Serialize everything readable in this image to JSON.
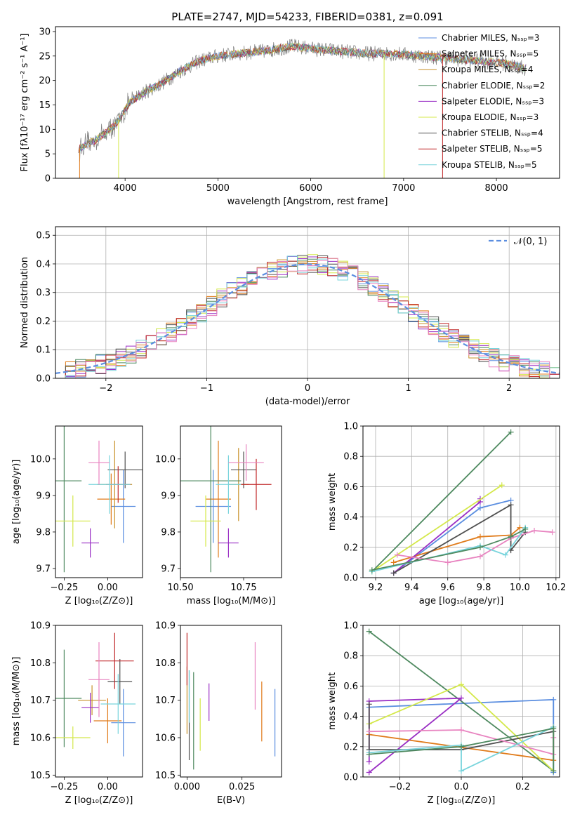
{
  "figure_title": "PLATE=2747, MJD=54233, FIBERID=0381, z=0.091",
  "colors": {
    "chabrier_miles": "#5b8ee0",
    "salpeter_miles": "#e07b1a",
    "kroupa_miles": "#c8912a",
    "chabrier_elodie": "#4f8a60",
    "salpeter_elodie": "#9a2fc4",
    "kroupa_elodie": "#d4e84a",
    "chabrier_stelib": "#505050",
    "salpeter_stelib": "#c0282a",
    "kroupa_stelib": "#78d4dc",
    "pink": "#e884c0",
    "data": "#808080",
    "normal_curve": "#5b8ee0"
  },
  "chart_data": [
    {
      "id": "spectrum",
      "type": "line",
      "xlabel": "wavelength [Angstrom, rest frame]",
      "ylabel": "Flux [fλ10⁻¹⁷ erg cm⁻² s⁻¹ A⁻¹]",
      "xlim": [
        3250,
        8680
      ],
      "ylim": [
        0,
        31
      ],
      "xticks": [
        "4000",
        "5000",
        "6000",
        "7000",
        "8000"
      ],
      "yticks": [
        "0",
        "5",
        "10",
        "15",
        "20",
        "25",
        "30"
      ],
      "continuum": {
        "x": [
          3500,
          3700,
          3900,
          4050,
          4200,
          4400,
          4600,
          4800,
          5000,
          5200,
          5500,
          5800,
          6000,
          6300,
          6600,
          6900,
          7200,
          7500,
          7800,
          8100,
          8300
        ],
        "y": [
          6,
          8,
          11,
          15.5,
          17.5,
          19.5,
          22,
          24,
          25,
          25.5,
          26,
          27,
          26.5,
          26,
          25.5,
          25.5,
          25,
          24.5,
          24,
          23.5,
          22.5
        ]
      },
      "drops_to_zero": [
        3510,
        3930,
        6790,
        7420
      ],
      "legend": [
        "Chabrier MILES, Nₛₛₚ=3",
        "Salpeter MILES, Nₛₛₚ=5",
        "Kroupa MILES, Nₛₛₚ=4",
        "Chabrier ELODIE, Nₛₛₚ=2",
        "Salpeter ELODIE, Nₛₛₚ=3",
        "Kroupa ELODIE, Nₛₛₚ=3",
        "Chabrier STELIB, Nₛₛₚ=4",
        "Salpeter STELIB, Nₛₛₚ=5",
        "Kroupa STELIB, Nₛₛₚ=5"
      ],
      "legend_placement": "right"
    },
    {
      "id": "residuals",
      "type": "histogram",
      "xlabel": "(data-model)/error",
      "ylabel": "Normed distribution",
      "xlim": [
        -2.5,
        2.5
      ],
      "ylim": [
        0,
        0.53
      ],
      "xticks": [
        "−2",
        "−1",
        "0",
        "1",
        "2"
      ],
      "yticks": [
        "0.0",
        "0.1",
        "0.2",
        "0.3",
        "0.4",
        "0.5"
      ],
      "grid": true,
      "bin_width": 0.1,
      "reference_curve": "N(0,1)",
      "legend": [
        "𝒩(0, 1)"
      ],
      "legend_placement": "top-right"
    },
    {
      "id": "age_vs_Z",
      "type": "errorbar",
      "xlabel": "Z [log₁₀(Z/Z⊙)]",
      "ylabel": "age  [log₁₀(age/yr)]",
      "xlim": [
        -0.3,
        0.2
      ],
      "ylim": [
        9.675,
        10.09
      ],
      "xticks": [
        "−0.25",
        "0.00"
      ],
      "yticks": [
        "9.7",
        "9.8",
        "9.9",
        "10.0"
      ],
      "points": [
        {
          "x": 0.09,
          "y": 9.87,
          "ex": 0.07,
          "ey": 0.1,
          "c": "chabrier_miles"
        },
        {
          "x": 0.02,
          "y": 9.89,
          "ex": 0.08,
          "ey": 0.07,
          "c": "salpeter_miles"
        },
        {
          "x": 0.04,
          "y": 9.93,
          "ex": 0.1,
          "ey": 0.12,
          "c": "kroupa_miles"
        },
        {
          "x": -0.25,
          "y": 9.94,
          "ex": 0.1,
          "ey": 0.25,
          "c": "chabrier_elodie"
        },
        {
          "x": -0.1,
          "y": 9.77,
          "ex": 0.05,
          "ey": 0.04,
          "c": "salpeter_elodie"
        },
        {
          "x": -0.2,
          "y": 9.83,
          "ex": 0.1,
          "ey": 0.07,
          "c": "kroupa_elodie"
        },
        {
          "x": 0.1,
          "y": 9.97,
          "ex": 0.1,
          "ey": 0.05,
          "c": "chabrier_stelib"
        },
        {
          "x": 0.06,
          "y": 9.93,
          "ex": 0.07,
          "ey": 0.05,
          "c": "salpeter_stelib"
        },
        {
          "x": 0.01,
          "y": 9.93,
          "ex": 0.12,
          "ey": 0.08,
          "c": "kroupa_stelib"
        },
        {
          "x": -0.05,
          "y": 9.99,
          "ex": 0.06,
          "ey": 0.06,
          "c": "pink"
        }
      ]
    },
    {
      "id": "age_vs_mass",
      "type": "errorbar",
      "xlabel": "mass [log₁₀(M/M⊙)]",
      "ylabel": "",
      "xlim": [
        10.5,
        10.9
      ],
      "ylim": [
        9.675,
        10.09
      ],
      "xticks": [
        "10.50",
        "10.75"
      ],
      "yticks": [
        "9.7",
        "9.8",
        "9.9",
        "10.0"
      ],
      "points": [
        {
          "x": 10.63,
          "y": 9.87,
          "ex": 0.07,
          "ey": 0.1,
          "c": "chabrier_miles"
        },
        {
          "x": 10.65,
          "y": 9.89,
          "ex": 0.05,
          "ey": 0.16,
          "c": "salpeter_miles"
        },
        {
          "x": 10.73,
          "y": 9.93,
          "ex": 0.04,
          "ey": 0.1,
          "c": "kroupa_miles"
        },
        {
          "x": 10.62,
          "y": 9.94,
          "ex": 0.12,
          "ey": 0.25,
          "c": "chabrier_elodie"
        },
        {
          "x": 10.69,
          "y": 9.77,
          "ex": 0.04,
          "ey": 0.04,
          "c": "salpeter_elodie"
        },
        {
          "x": 10.6,
          "y": 9.83,
          "ex": 0.06,
          "ey": 0.07,
          "c": "kroupa_elodie"
        },
        {
          "x": 10.75,
          "y": 9.97,
          "ex": 0.05,
          "ey": 0.05,
          "c": "chabrier_stelib"
        },
        {
          "x": 10.8,
          "y": 9.93,
          "ex": 0.06,
          "ey": 0.07,
          "c": "salpeter_stelib"
        },
        {
          "x": 10.69,
          "y": 9.93,
          "ex": 0.05,
          "ey": 0.08,
          "c": "kroupa_stelib"
        },
        {
          "x": 10.76,
          "y": 9.99,
          "ex": 0.07,
          "ey": 0.05,
          "c": "pink"
        }
      ]
    },
    {
      "id": "weight_vs_age",
      "type": "line",
      "xlabel": "age  [log₁₀(age/yr)]",
      "ylabel": "mass weight",
      "xlim": [
        9.13,
        10.22
      ],
      "ylim": [
        0,
        1
      ],
      "xticks": [
        "9.2",
        "9.4",
        "9.6",
        "9.8",
        "10.0",
        "10.2"
      ],
      "yticks": [
        "0.0",
        "0.2",
        "0.4",
        "0.6",
        "0.8",
        "1.0"
      ],
      "grid": true,
      "series": [
        {
          "c": "chabrier_miles",
          "x": [
            9.3,
            9.78,
            9.95
          ],
          "y": [
            0.03,
            0.46,
            0.51
          ]
        },
        {
          "c": "salpeter_miles",
          "x": [
            9.3,
            9.78,
            9.95,
            10.0
          ],
          "y": [
            0.1,
            0.27,
            0.28,
            0.33
          ]
        },
        {
          "c": "chabrier_elodie",
          "x": [
            9.18,
            9.95
          ],
          "y": [
            0.04,
            0.96
          ]
        },
        {
          "c": "salpeter_elodie",
          "x": [
            9.3,
            9.78,
            9.78
          ],
          "y": [
            0.03,
            0.5,
            0.52
          ]
        },
        {
          "c": "kroupa_elodie",
          "x": [
            9.18,
            9.9
          ],
          "y": [
            0.04,
            0.61
          ]
        },
        {
          "c": "chabrier_stelib",
          "x": [
            9.3,
            9.95,
            9.95,
            10.03
          ],
          "y": [
            0.03,
            0.48,
            0.18,
            0.3
          ]
        },
        {
          "c": "pink",
          "x": [
            9.32,
            9.6,
            9.78,
            9.95,
            10.08,
            10.18
          ],
          "y": [
            0.15,
            0.1,
            0.14,
            0.26,
            0.31,
            0.3
          ]
        },
        {
          "c": "kroupa_stelib",
          "x": [
            9.18,
            9.78,
            9.92,
            10.03
          ],
          "y": [
            0.04,
            0.21,
            0.15,
            0.33
          ]
        },
        {
          "c": "chabrier_elodie",
          "x": [
            9.18,
            9.78,
            9.95,
            10.03
          ],
          "y": [
            0.05,
            0.2,
            0.27,
            0.32
          ]
        }
      ]
    },
    {
      "id": "mass_vs_Z",
      "type": "errorbar",
      "xlabel": "Z [log₁₀(Z/Z⊙)]",
      "ylabel": "mass [log₁₀(M/M⊙)]",
      "xlim": [
        -0.3,
        0.2
      ],
      "ylim": [
        10.495,
        10.9
      ],
      "xticks": [
        "−0.25",
        "0.00"
      ],
      "yticks": [
        "10.5",
        "10.6",
        "10.7",
        "10.8",
        "10.9"
      ],
      "points": [
        {
          "x": 0.09,
          "y": 10.64,
          "ex": 0.07,
          "ey": 0.09,
          "c": "chabrier_miles"
        },
        {
          "x": 0.0,
          "y": 10.645,
          "ex": 0.08,
          "ey": 0.06,
          "c": "salpeter_miles"
        },
        {
          "x": -0.09,
          "y": 10.7,
          "ex": 0.08,
          "ey": 0.04,
          "c": "kroupa_miles"
        },
        {
          "x": -0.25,
          "y": 10.705,
          "ex": 0.1,
          "ey": 0.13,
          "c": "chabrier_elodie"
        },
        {
          "x": -0.1,
          "y": 10.68,
          "ex": 0.05,
          "ey": 0.04,
          "c": "salpeter_elodie"
        },
        {
          "x": -0.2,
          "y": 10.6,
          "ex": 0.1,
          "ey": 0.03,
          "c": "kroupa_elodie"
        },
        {
          "x": 0.07,
          "y": 10.75,
          "ex": 0.07,
          "ey": 0.06,
          "c": "chabrier_stelib"
        },
        {
          "x": 0.04,
          "y": 10.805,
          "ex": 0.11,
          "ey": 0.075,
          "c": "salpeter_stelib"
        },
        {
          "x": 0.06,
          "y": 10.69,
          "ex": 0.1,
          "ey": 0.08,
          "c": "kroupa_stelib"
        },
        {
          "x": -0.05,
          "y": 10.755,
          "ex": 0.06,
          "ey": 0.1,
          "c": "pink"
        }
      ]
    },
    {
      "id": "mass_vs_ebv",
      "type": "errorbar",
      "xlabel": "E(B-V)",
      "ylabel": "",
      "xlim": [
        -0.003,
        0.043
      ],
      "ylim": [
        10.495,
        10.9
      ],
      "xticks": [
        "0.000",
        "0.025"
      ],
      "yticks": [
        "10.5",
        "10.6",
        "10.7",
        "10.8",
        "10.9"
      ],
      "points": [
        {
          "x": 0.04,
          "y": 10.64,
          "ex": 0,
          "ey": 0.09,
          "c": "chabrier_miles"
        },
        {
          "x": 0.034,
          "y": 10.67,
          "ex": 0,
          "ey": 0.08,
          "c": "salpeter_miles"
        },
        {
          "x": 0.0,
          "y": 10.7,
          "ex": 0,
          "ey": 0.09,
          "c": "kroupa_miles"
        },
        {
          "x": 0.003,
          "y": 10.645,
          "ex": 0,
          "ey": 0.13,
          "c": "chabrier_elodie"
        },
        {
          "x": 0.01,
          "y": 10.695,
          "ex": 0,
          "ey": 0.05,
          "c": "salpeter_elodie"
        },
        {
          "x": 0.006,
          "y": 10.635,
          "ex": 0,
          "ey": 0.07,
          "c": "kroupa_elodie"
        },
        {
          "x": 0.001,
          "y": 10.66,
          "ex": 0,
          "ey": 0.12,
          "c": "chabrier_stelib"
        },
        {
          "x": 0.0,
          "y": 10.81,
          "ex": 0,
          "ey": 0.07,
          "c": "salpeter_stelib"
        },
        {
          "x": 0.001,
          "y": 10.71,
          "ex": 0,
          "ey": 0.07,
          "c": "kroupa_stelib"
        },
        {
          "x": 0.031,
          "y": 10.765,
          "ex": 0,
          "ey": 0.09,
          "c": "pink"
        }
      ]
    },
    {
      "id": "weight_vs_Z",
      "type": "line",
      "xlabel": "Z [log₁₀(Z/Z⊙)]",
      "ylabel": "mass weight",
      "xlim": [
        -0.32,
        0.32
      ],
      "ylim": [
        0,
        1
      ],
      "xticks": [
        "−0.2",
        "0.0",
        "0.2"
      ],
      "yticks": [
        "0.0",
        "0.2",
        "0.4",
        "0.6",
        "0.8",
        "1.0"
      ],
      "grid": true,
      "series": [
        {
          "c": "chabrier_miles",
          "x": [
            -0.3,
            0.3,
            0.3
          ],
          "y": [
            0.46,
            0.51,
            0.03
          ]
        },
        {
          "c": "salpeter_miles",
          "x": [
            -0.3,
            0.3,
            0.3
          ],
          "y": [
            0.28,
            0.11,
            0.33
          ]
        },
        {
          "c": "chabrier_elodie",
          "x": [
            -0.3,
            0.3
          ],
          "y": [
            0.96,
            0.04
          ]
        },
        {
          "c": "salpeter_elodie",
          "x": [
            -0.3,
            0.0,
            -0.3,
            -0.3
          ],
          "y": [
            0.03,
            0.52,
            0.5,
            0.1
          ]
        },
        {
          "c": "kroupa_elodie",
          "x": [
            -0.3,
            0.0,
            0.3
          ],
          "y": [
            0.35,
            0.61,
            0.04
          ]
        },
        {
          "c": "chabrier_stelib",
          "x": [
            -0.3,
            -0.3,
            0.0,
            0.3
          ],
          "y": [
            0.48,
            0.18,
            0.18,
            0.3
          ]
        },
        {
          "c": "pink",
          "x": [
            -0.3,
            0.0,
            0.3,
            0.3
          ],
          "y": [
            0.3,
            0.31,
            0.15,
            0.26
          ]
        },
        {
          "c": "kroupa_stelib",
          "x": [
            -0.3,
            0.0,
            0.0,
            0.3
          ],
          "y": [
            0.16,
            0.21,
            0.04,
            0.33
          ]
        },
        {
          "c": "chabrier_elodie",
          "x": [
            -0.3,
            0.0,
            0.3,
            0.3
          ],
          "y": [
            0.15,
            0.2,
            0.32,
            0.04
          ]
        }
      ]
    }
  ]
}
